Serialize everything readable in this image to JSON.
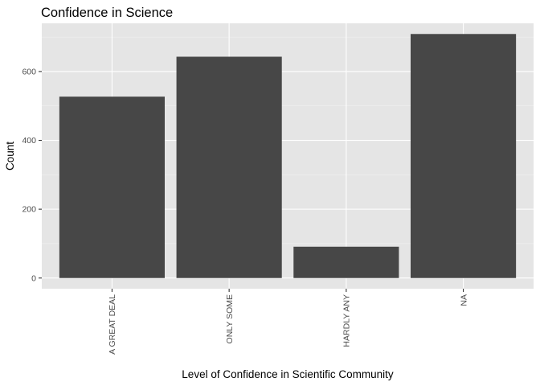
{
  "chart_data": {
    "type": "bar",
    "title": "Confidence in Science",
    "xlabel": "Level of Confidence in Scientific Community",
    "ylabel": "Count",
    "categories": [
      "A GREAT DEAL",
      "ONLY SOME",
      "HARDLY ANY",
      "NA"
    ],
    "values": [
      527,
      643,
      91,
      709
    ],
    "ylim": [
      -31,
      740
    ],
    "yticks": [
      0,
      200,
      400,
      600
    ],
    "ytick_labels": [
      "0",
      "200",
      "400",
      "600"
    ],
    "grid": true,
    "legend": "none",
    "colors": {
      "bar": "#474747",
      "panel": "#e5e5e5",
      "grid": "#ffffff"
    }
  }
}
